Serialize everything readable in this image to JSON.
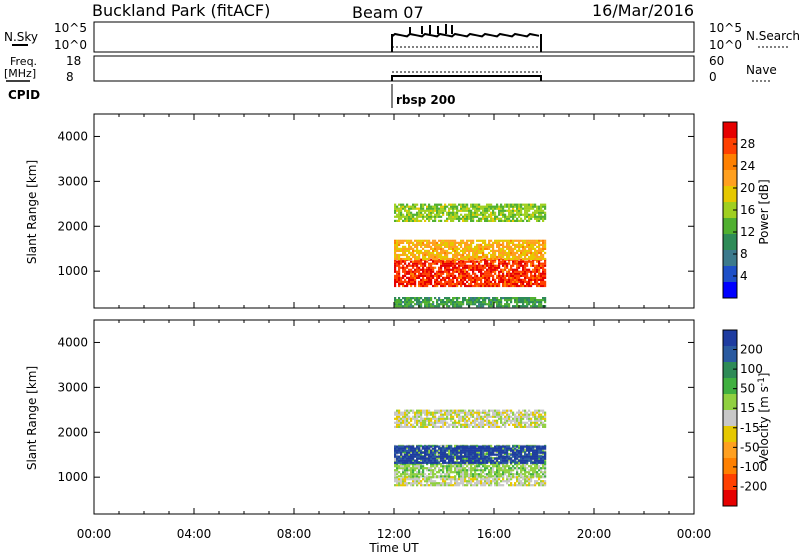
{
  "header": {
    "title": "Buckland Park (fitACF)",
    "beam": "Beam 07",
    "date": "16/Mar/2016"
  },
  "nsky_panel": {
    "left_label": "N.Sky",
    "right_label": "N.Search",
    "left_ticks": [
      "10^5",
      "10^0"
    ],
    "right_ticks": [
      "10^5",
      "10^0"
    ]
  },
  "freq_panel": {
    "left_label_1": "Freq.",
    "left_label_2": "[MHz]",
    "right_label": "Nave",
    "left_ticks": [
      "18",
      "8"
    ],
    "right_ticks": [
      "60",
      "0"
    ]
  },
  "cpid": {
    "label": "CPID",
    "value": "rbsp 200"
  },
  "x_axis": {
    "label": "Time UT",
    "ticks": [
      "00:00",
      "04:00",
      "08:00",
      "12:00",
      "16:00",
      "20:00",
      "00:00"
    ]
  },
  "power_colorbar": {
    "label": "Power [dB]",
    "ticks": [
      "28",
      "24",
      "20",
      "16",
      "12",
      "8",
      "4"
    ],
    "colors": [
      "#e60000",
      "#ff4000",
      "#ff8000",
      "#ffa020",
      "#e6c800",
      "#a0d020",
      "#50b030",
      "#2e8b57",
      "#3c7a8c",
      "#1e50c8",
      "#0000ff"
    ]
  },
  "velocity_colorbar": {
    "label": "Velocity [m s^-1]",
    "ticks": [
      "200",
      "100",
      "50",
      "15",
      "-15",
      "-50",
      "-100",
      "-200"
    ],
    "colors": [
      "#1e3ca0",
      "#2a5aa0",
      "#2e8b57",
      "#40b040",
      "#90d040",
      "#c8c8c8",
      "#e6c800",
      "#ffa020",
      "#ff8000",
      "#ff4000",
      "#e60000"
    ]
  },
  "chart_data": [
    {
      "type": "heatmap",
      "title": "Power",
      "xlabel": "Time UT",
      "ylabel": "Slant Range [km]",
      "xlim": [
        "00:00",
        "24:00"
      ],
      "ylim": [
        180,
        4500
      ],
      "yticks": [
        1000,
        2000,
        3000,
        4000
      ],
      "data_interval": [
        "12:00",
        "18:00"
      ],
      "bands": [
        {
          "range_km": [
            650,
            1250
          ],
          "power_db": 28
        },
        {
          "range_km": [
            1250,
            1700
          ],
          "power_db": 20
        },
        {
          "range_km": [
            2100,
            2500
          ],
          "power_db": 14
        },
        {
          "range_km": [
            200,
            400
          ],
          "power_db": 10
        }
      ]
    },
    {
      "type": "heatmap",
      "title": "Velocity",
      "xlabel": "Time UT",
      "ylabel": "Slant Range [km]",
      "xlim": [
        "00:00",
        "24:00"
      ],
      "ylim": [
        180,
        4500
      ],
      "yticks": [
        1000,
        2000,
        3000,
        4000
      ],
      "data_interval": [
        "12:00",
        "18:00"
      ],
      "bands": [
        {
          "range_km": [
            800,
            1000
          ],
          "velocity_ms": 0
        },
        {
          "range_km": [
            1000,
            1700
          ],
          "velocity_ms": 30
        },
        {
          "range_km": [
            1300,
            1700
          ],
          "velocity_ms": 200
        },
        {
          "range_km": [
            2100,
            2500
          ],
          "velocity_ms": 0
        }
      ]
    }
  ]
}
